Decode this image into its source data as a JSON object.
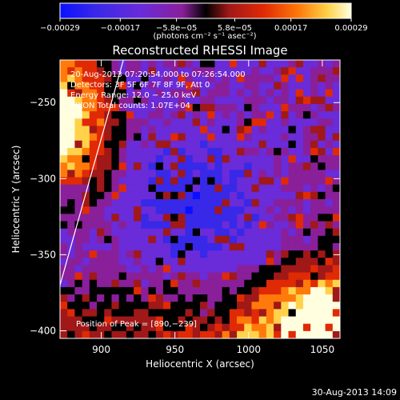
{
  "chart_data": {
    "type": "heatmap",
    "title": "Reconstructed RHESSI Image",
    "xlabel": "Heliocentric X (arcsec)",
    "ylabel": "Heliocentric Y (arcsec)",
    "xlim": [
      872,
      1062
    ],
    "ylim": [
      -405,
      -222
    ],
    "x_ticks": [
      900,
      950,
      1000,
      1050
    ],
    "y_ticks": [
      -250,
      -300,
      -350,
      -400
    ],
    "x_tick_labels": [
      "900",
      "950",
      "1000",
      "1050"
    ],
    "y_tick_labels": [
      "−250",
      "−300",
      "−350",
      "−400"
    ],
    "colorbar": {
      "min": -0.00029,
      "max": 0.00029,
      "ticks": [
        -0.00029,
        -0.00017,
        -5.8e-05,
        5.8e-05,
        0.00017,
        0.00029
      ],
      "tick_labels": [
        "−0.00029",
        "−0.00017",
        "−5.8e−05",
        "5.8e−05",
        "0.00017",
        "0.00029"
      ],
      "units_label": "(photons cm⁻² s⁻¹ asec⁻²)",
      "colors": [
        "#0a10ff",
        "#3828e8",
        "#6a2bd8",
        "#8a1f9a",
        "#000000",
        "#a01818",
        "#e02a05",
        "#ff7a0a",
        "#ffd24a",
        "#ffffe0"
      ]
    },
    "annotations": {
      "time_range": "20-Aug-2013 07:20:54.000 to 07:26:54.000",
      "detectors": "Detectors: 3F 5F 6F 7F 8F 9F, Att 0",
      "energy_range": "Energy Range: 12.0 − 25.0 keV",
      "counts": "PIXON  Total counts: 1.07E+04",
      "peak": "Position of Peak = [890,−239]"
    },
    "limb_line": [
      [
        872,
        -370
      ],
      [
        915,
        -222
      ]
    ],
    "peak_position": [
      890,
      -239
    ],
    "footer_date": "30-Aug-2013 14:09"
  }
}
